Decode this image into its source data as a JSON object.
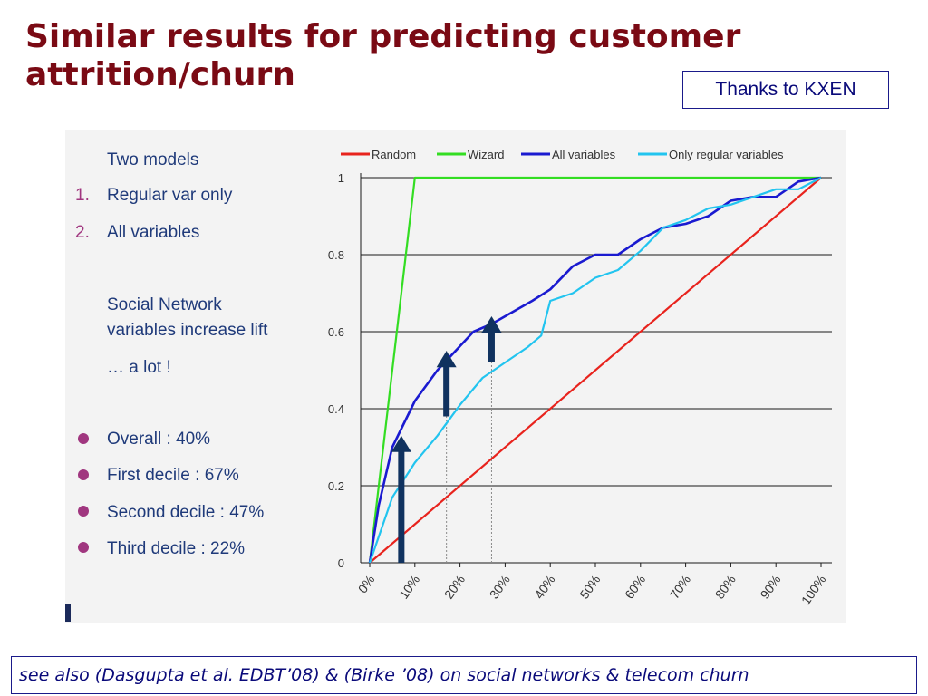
{
  "slide": {
    "title": "Similar results for predicting customer attrition/churn",
    "thanks": "Thanks to KXEN",
    "footer": "see also (Dasgupta et al. EDBT’08) & (Birke ’08) on social networks & telecom churn"
  },
  "left_panel": {
    "heading": "Two models",
    "models": [
      {
        "num": "1.",
        "label": "Regular var only"
      },
      {
        "num": "2.",
        "label": "All variables"
      }
    ],
    "note_line1": "Social Network",
    "note_line2": "variables increase lift",
    "note_line3": "… a lot !",
    "bullets": [
      "Overall : 40%",
      "First decile : 67%",
      "Second decile : 47%",
      "Third decile : 22%"
    ]
  },
  "colors": {
    "title": "#7a0a14",
    "random": "#e8231d",
    "wizard": "#33dd22",
    "all_variables": "#1a1ad0",
    "regular_variables": "#22c4ef",
    "arrow": "#10325f"
  },
  "chart_data": {
    "type": "line",
    "xlabel": "",
    "ylabel": "",
    "xlim": [
      0,
      100
    ],
    "ylim": [
      0,
      1
    ],
    "x_tick_labels": [
      "0%",
      "10%",
      "20%",
      "30%",
      "40%",
      "50%",
      "60%",
      "70%",
      "80%",
      "90%",
      "100%"
    ],
    "y_tick_labels": [
      "0",
      "0.2",
      "0.4",
      "0.6",
      "0.8",
      "1"
    ],
    "grid": "horizontal",
    "legend_position": "top",
    "series": [
      {
        "name": "Random",
        "color": "#e8231d",
        "points": [
          [
            0,
            0
          ],
          [
            100,
            1
          ]
        ]
      },
      {
        "name": "Wizard",
        "color": "#33dd22",
        "points": [
          [
            0,
            0
          ],
          [
            10,
            1
          ],
          [
            100,
            1
          ]
        ]
      },
      {
        "name": "All variables",
        "color": "#1a1ad0",
        "points": [
          [
            0,
            0
          ],
          [
            2,
            0.15
          ],
          [
            5,
            0.3
          ],
          [
            10,
            0.42
          ],
          [
            15,
            0.5
          ],
          [
            19,
            0.55
          ],
          [
            23,
            0.6
          ],
          [
            27,
            0.62
          ],
          [
            30,
            0.64
          ],
          [
            33,
            0.66
          ],
          [
            36,
            0.68
          ],
          [
            40,
            0.71
          ],
          [
            45,
            0.77
          ],
          [
            50,
            0.8
          ],
          [
            55,
            0.8
          ],
          [
            60,
            0.84
          ],
          [
            65,
            0.87
          ],
          [
            70,
            0.88
          ],
          [
            75,
            0.9
          ],
          [
            80,
            0.94
          ],
          [
            85,
            0.95
          ],
          [
            90,
            0.95
          ],
          [
            95,
            0.99
          ],
          [
            100,
            1
          ]
        ]
      },
      {
        "name": "Only regular variables",
        "color": "#22c4ef",
        "points": [
          [
            0,
            0
          ],
          [
            5,
            0.17
          ],
          [
            10,
            0.26
          ],
          [
            15,
            0.33
          ],
          [
            20,
            0.41
          ],
          [
            25,
            0.48
          ],
          [
            30,
            0.52
          ],
          [
            35,
            0.56
          ],
          [
            38,
            0.59
          ],
          [
            40,
            0.68
          ],
          [
            45,
            0.7
          ],
          [
            50,
            0.74
          ],
          [
            55,
            0.76
          ],
          [
            60,
            0.81
          ],
          [
            65,
            0.87
          ],
          [
            70,
            0.89
          ],
          [
            75,
            0.92
          ],
          [
            80,
            0.93
          ],
          [
            85,
            0.95
          ],
          [
            90,
            0.97
          ],
          [
            95,
            0.97
          ],
          [
            100,
            1
          ]
        ]
      }
    ],
    "annotations": [
      {
        "type": "arrow",
        "x": 7,
        "y_from": 0,
        "y_to": 0.33
      },
      {
        "type": "arrow",
        "x": 17,
        "y_from": 0.38,
        "y_to": 0.55
      },
      {
        "type": "arrow",
        "x": 27,
        "y_from": 0.52,
        "y_to": 0.64
      }
    ],
    "reference_lines": [
      {
        "x": 17,
        "y_from": 0,
        "y_to": 0.55
      },
      {
        "x": 27,
        "y_from": 0,
        "y_to": 0.64
      }
    ]
  }
}
